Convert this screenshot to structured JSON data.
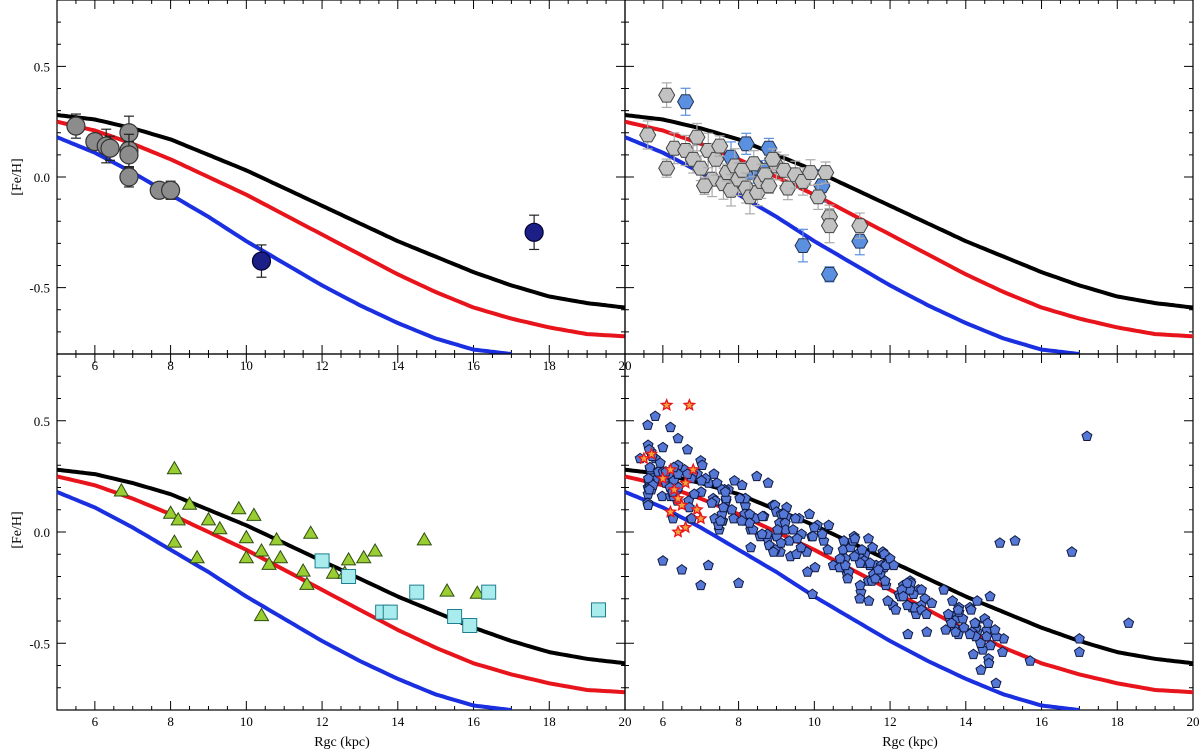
{
  "chart_data": {
    "type": "scatter",
    "layout": "2x2 grid, shared axes",
    "xlabel": "Rgc (kpc)",
    "ylabel": "[Fe/H]",
    "xlim": [
      5,
      20
    ],
    "ylim": [
      -0.8,
      0.8
    ],
    "x_ticks": [
      6,
      8,
      10,
      12,
      14,
      16,
      18,
      20
    ],
    "x_tick_labels": [
      "6",
      "8",
      "10",
      "12",
      "14",
      "16",
      "18",
      "20"
    ],
    "y_ticks": [
      0.5,
      0.0,
      -0.5
    ],
    "y_tick_labels": [
      "0.5",
      "0.0",
      "-0.5"
    ],
    "model_curves": [
      {
        "name": "black-curve",
        "color": "#000000",
        "x": [
          5,
          6,
          7,
          8,
          9,
          10,
          11,
          12,
          13,
          14,
          15,
          16,
          17,
          18,
          19,
          20
        ],
        "y": [
          0.28,
          0.26,
          0.22,
          0.17,
          0.1,
          0.03,
          -0.05,
          -0.13,
          -0.21,
          -0.29,
          -0.36,
          -0.43,
          -0.49,
          -0.54,
          -0.57,
          -0.59
        ]
      },
      {
        "name": "red-curve",
        "color": "#e8141c",
        "x": [
          5,
          6,
          7,
          8,
          9,
          10,
          11,
          12,
          13,
          14,
          15,
          16,
          17,
          18,
          19,
          20
        ],
        "y": [
          0.25,
          0.21,
          0.15,
          0.08,
          0.0,
          -0.08,
          -0.17,
          -0.26,
          -0.35,
          -0.44,
          -0.52,
          -0.59,
          -0.64,
          -0.68,
          -0.71,
          -0.72
        ]
      },
      {
        "name": "blue-curve",
        "color": "#1a2fe0",
        "x": [
          5,
          6,
          7,
          8,
          9,
          10,
          11,
          12,
          13,
          14,
          15,
          16,
          17
        ],
        "y": [
          0.18,
          0.11,
          0.02,
          -0.08,
          -0.18,
          -0.29,
          -0.39,
          -0.49,
          -0.58,
          -0.66,
          -0.73,
          -0.78,
          -0.8
        ]
      }
    ],
    "panels": [
      {
        "name": "top-left",
        "series": [
          {
            "name": "grey-circles",
            "marker": "circle",
            "fill": "#8c8c8c",
            "stroke": "#333333",
            "errorbars": true,
            "points": [
              [
                5.5,
                0.23
              ],
              [
                6.0,
                0.16
              ],
              [
                6.3,
                0.14
              ],
              [
                6.4,
                0.13
              ],
              [
                6.9,
                0.2
              ],
              [
                6.9,
                0.12
              ],
              [
                6.9,
                0.1
              ],
              [
                6.9,
                0.0
              ],
              [
                7.7,
                -0.06
              ],
              [
                8.0,
                -0.06
              ]
            ]
          },
          {
            "name": "navy-circles",
            "marker": "circle",
            "fill": "#1b1f86",
            "stroke": "#000033",
            "errorbars": true,
            "points": [
              [
                10.4,
                -0.38
              ],
              [
                17.6,
                -0.25
              ]
            ]
          }
        ]
      },
      {
        "name": "top-right",
        "series": [
          {
            "name": "blue-hexagons",
            "marker": "hexagon",
            "fill": "#5b8fe0",
            "stroke": "#22334d",
            "errorbars": true,
            "points": [
              [
                6.6,
                0.34
              ],
              [
                7.8,
                0.09
              ],
              [
                8.2,
                0.15
              ],
              [
                8.3,
                0.02
              ],
              [
                8.5,
                0.04
              ],
              [
                8.8,
                0.13
              ],
              [
                8.7,
                0.03
              ],
              [
                10.2,
                -0.04
              ],
              [
                9.7,
                -0.31
              ],
              [
                11.2,
                -0.29
              ],
              [
                10.4,
                -0.44
              ]
            ]
          },
          {
            "name": "grey-hexagons",
            "marker": "hexagon",
            "fill": "#c2c2c2",
            "stroke": "#444444",
            "errorbars": true,
            "points": [
              [
                6.1,
                0.37
              ],
              [
                5.6,
                0.19
              ],
              [
                6.3,
                0.13
              ],
              [
                6.6,
                0.12
              ],
              [
                6.8,
                0.08
              ],
              [
                6.9,
                0.18
              ],
              [
                7.0,
                0.04
              ],
              [
                7.2,
                0.12
              ],
              [
                7.3,
                -0.01
              ],
              [
                7.4,
                0.08
              ],
              [
                7.5,
                0.14
              ],
              [
                7.6,
                -0.03
              ],
              [
                7.7,
                0.02
              ],
              [
                7.8,
                -0.06
              ],
              [
                7.9,
                0.05
              ],
              [
                8.0,
                -0.01
              ],
              [
                8.1,
                0.03
              ],
              [
                8.2,
                -0.05
              ],
              [
                8.3,
                -0.09
              ],
              [
                8.4,
                0.06
              ],
              [
                8.5,
                -0.07
              ],
              [
                8.6,
                -0.02
              ],
              [
                8.7,
                0.01
              ],
              [
                8.8,
                -0.04
              ],
              [
                9.0,
                0.05
              ],
              [
                9.2,
                0.03
              ],
              [
                9.3,
                -0.05
              ],
              [
                9.5,
                0.01
              ],
              [
                9.7,
                -0.02
              ],
              [
                9.9,
                0.02
              ],
              [
                10.1,
                -0.09
              ],
              [
                10.3,
                0.02
              ],
              [
                10.4,
                -0.18
              ],
              [
                10.4,
                -0.22
              ],
              [
                11.2,
                -0.22
              ],
              [
                6.1,
                0.04
              ],
              [
                7.1,
                -0.04
              ],
              [
                8.9,
                0.08
              ]
            ]
          }
        ]
      },
      {
        "name": "bottom-left",
        "series": [
          {
            "name": "green-triangles",
            "marker": "triangle",
            "fill": "#9acd32",
            "stroke": "#2d4d10",
            "points": [
              [
                6.7,
                0.18
              ],
              [
                8.1,
                0.28
              ],
              [
                8.0,
                0.08
              ],
              [
                8.2,
                0.05
              ],
              [
                8.5,
                0.12
              ],
              [
                8.1,
                -0.05
              ],
              [
                8.7,
                -0.12
              ],
              [
                9.0,
                0.05
              ],
              [
                9.3,
                0.01
              ],
              [
                9.8,
                0.1
              ],
              [
                10.2,
                0.07
              ],
              [
                10.0,
                -0.03
              ],
              [
                10.0,
                -0.12
              ],
              [
                10.4,
                -0.09
              ],
              [
                10.6,
                -0.15
              ],
              [
                10.8,
                -0.04
              ],
              [
                10.9,
                -0.12
              ],
              [
                10.4,
                -0.38
              ],
              [
                11.5,
                -0.18
              ],
              [
                11.6,
                -0.24
              ],
              [
                11.7,
                -0.01
              ],
              [
                12.3,
                -0.19
              ],
              [
                12.6,
                -0.19
              ],
              [
                12.7,
                -0.13
              ],
              [
                13.1,
                -0.12
              ],
              [
                13.4,
                -0.09
              ],
              [
                14.7,
                -0.04
              ],
              [
                15.3,
                -0.27
              ],
              [
                16.1,
                -0.28
              ]
            ]
          },
          {
            "name": "cyan-squares",
            "marker": "square",
            "fill": "#a8ecee",
            "stroke": "#1e7f8e",
            "points": [
              [
                12.0,
                -0.13
              ],
              [
                12.7,
                -0.2
              ],
              [
                13.6,
                -0.36
              ],
              [
                13.8,
                -0.36
              ],
              [
                14.5,
                -0.27
              ],
              [
                15.5,
                -0.38
              ],
              [
                16.4,
                -0.27
              ],
              [
                15.9,
                -0.42
              ],
              [
                19.3,
                -0.35
              ]
            ]
          }
        ]
      },
      {
        "name": "bottom-right",
        "series": [
          {
            "name": "blue-pentagons",
            "marker": "pentagon",
            "fill": "#5577d6",
            "stroke": "#101a40",
            "generated_count": 260,
            "trend": "scatter along red curve, x 5.5-15, spread 0.12 dex",
            "points": [
              [
                5.4,
                0.33
              ],
              [
                5.6,
                0.48
              ],
              [
                5.8,
                0.52
              ],
              [
                6.2,
                0.47
              ],
              [
                6.4,
                0.42
              ],
              [
                6.0,
                0.38
              ],
              [
                17.2,
                0.43
              ],
              [
                18.3,
                -0.41
              ],
              [
                17.0,
                -0.48
              ],
              [
                17.0,
                -0.54
              ],
              [
                16.8,
                -0.09
              ],
              [
                15.3,
                -0.04
              ],
              [
                14.9,
                -0.05
              ],
              [
                14.6,
                -0.57
              ],
              [
                14.4,
                -0.62
              ],
              [
                14.8,
                -0.68
              ],
              [
                14.2,
                -0.55
              ],
              [
                15.0,
                -0.48
              ],
              [
                15.7,
                -0.58
              ],
              [
                14.3,
                -0.45
              ],
              [
                6.0,
                -0.13
              ],
              [
                6.5,
                -0.17
              ],
              [
                7.2,
                -0.15
              ],
              [
                8.0,
                -0.23
              ],
              [
                7.0,
                -0.24
              ]
            ]
          },
          {
            "name": "red-stars",
            "marker": "star",
            "fill": "#f2a43a",
            "stroke": "#e8141c",
            "points": [
              [
                6.1,
                0.57
              ],
              [
                6.7,
                0.57
              ],
              [
                5.5,
                0.33
              ],
              [
                5.7,
                0.35
              ],
              [
                6.0,
                0.24
              ],
              [
                6.2,
                0.28
              ],
              [
                6.3,
                0.19
              ],
              [
                6.4,
                0.15
              ],
              [
                6.5,
                0.12
              ],
              [
                6.6,
                0.22
              ],
              [
                6.2,
                0.09
              ],
              [
                6.6,
                0.02
              ],
              [
                6.4,
                0.0
              ],
              [
                6.8,
                0.28
              ],
              [
                7.0,
                0.06
              ],
              [
                6.9,
                0.1
              ]
            ]
          }
        ]
      }
    ]
  }
}
